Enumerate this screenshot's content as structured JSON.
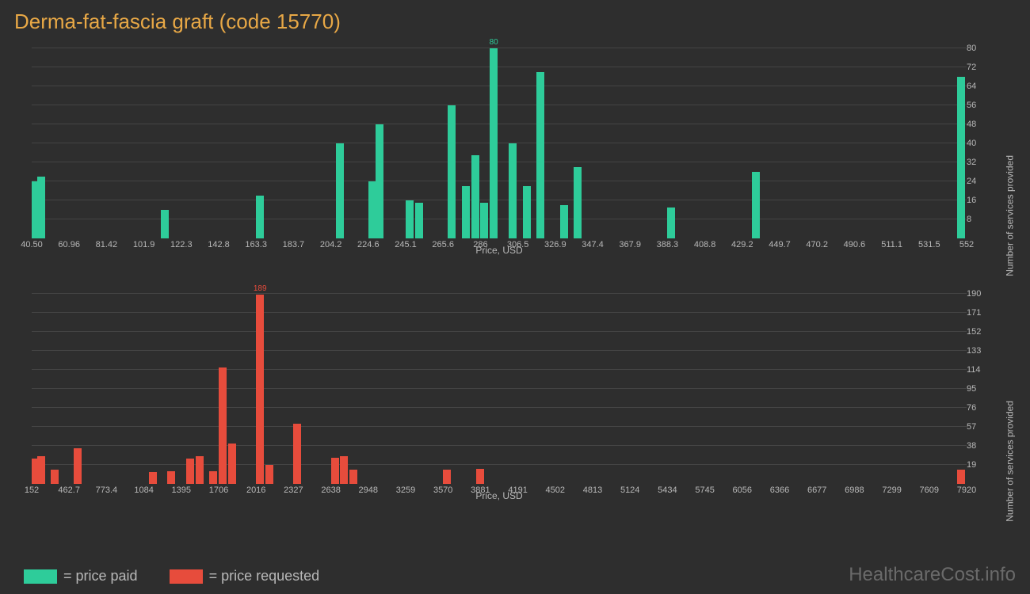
{
  "title": "Derma-fat-fascia graft (code 15770)",
  "watermark": "HealthcareCost.info",
  "colors": {
    "paid": "#2ecc9a",
    "requested": "#e74c3c",
    "background": "#2e2e2e",
    "grid": "#444444",
    "text": "#b8b8b8",
    "title": "#e8a846"
  },
  "chart_paid": {
    "type": "bar",
    "color": "#2ecc9a",
    "x_label": "Price, USD",
    "y_label": "Number of services provided",
    "x_ticks": [
      "40.50",
      "60.96",
      "81.42",
      "101.9",
      "122.3",
      "142.8",
      "163.3",
      "183.7",
      "204.2",
      "224.6",
      "245.1",
      "265.6",
      "286",
      "306.5",
      "326.9",
      "347.4",
      "367.9",
      "388.3",
      "408.8",
      "429.2",
      "449.7",
      "470.2",
      "490.6",
      "511.1",
      "531.5",
      "552"
    ],
    "y_ticks": [
      8,
      16,
      24,
      32,
      40,
      48,
      56,
      64,
      72,
      80
    ],
    "y_max": 80,
    "max_label": "80",
    "bars": [
      {
        "x": 0,
        "v": 24
      },
      {
        "x": 0.6,
        "v": 26
      },
      {
        "x": 13.8,
        "v": 12
      },
      {
        "x": 24,
        "v": 18
      },
      {
        "x": 32.5,
        "v": 40
      },
      {
        "x": 36,
        "v": 24
      },
      {
        "x": 36.8,
        "v": 48
      },
      {
        "x": 40,
        "v": 16
      },
      {
        "x": 41,
        "v": 15
      },
      {
        "x": 44.5,
        "v": 56
      },
      {
        "x": 46,
        "v": 22
      },
      {
        "x": 47,
        "v": 35
      },
      {
        "x": 48,
        "v": 15
      },
      {
        "x": 49,
        "v": 80
      },
      {
        "x": 51,
        "v": 40
      },
      {
        "x": 52.5,
        "v": 22
      },
      {
        "x": 54,
        "v": 70
      },
      {
        "x": 56.5,
        "v": 14
      },
      {
        "x": 58,
        "v": 30
      },
      {
        "x": 68,
        "v": 13
      },
      {
        "x": 77,
        "v": 28
      },
      {
        "x": 99,
        "v": 68
      }
    ]
  },
  "chart_requested": {
    "type": "bar",
    "color": "#e74c3c",
    "x_label": "Price, USD",
    "y_label": "Number of services provided",
    "x_ticks": [
      "152",
      "462.7",
      "773.4",
      "1084",
      "1395",
      "1706",
      "2016",
      "2327",
      "2638",
      "2948",
      "3259",
      "3570",
      "3881",
      "4191",
      "4502",
      "4813",
      "5124",
      "5434",
      "5745",
      "6056",
      "6366",
      "6677",
      "6988",
      "7299",
      "7609",
      "7920"
    ],
    "y_ticks": [
      19,
      38,
      57,
      76,
      95,
      114,
      133,
      152,
      171,
      190
    ],
    "y_max": 190,
    "max_label": "189",
    "bars": [
      {
        "x": 0,
        "v": 25
      },
      {
        "x": 0.6,
        "v": 28
      },
      {
        "x": 2,
        "v": 14
      },
      {
        "x": 4.5,
        "v": 36
      },
      {
        "x": 12.5,
        "v": 12
      },
      {
        "x": 14.5,
        "v": 13
      },
      {
        "x": 16.5,
        "v": 25
      },
      {
        "x": 17.5,
        "v": 28
      },
      {
        "x": 19,
        "v": 13
      },
      {
        "x": 20,
        "v": 116
      },
      {
        "x": 21,
        "v": 40
      },
      {
        "x": 24,
        "v": 189
      },
      {
        "x": 25,
        "v": 19
      },
      {
        "x": 28,
        "v": 60
      },
      {
        "x": 32,
        "v": 26
      },
      {
        "x": 33,
        "v": 28
      },
      {
        "x": 34,
        "v": 14
      },
      {
        "x": 44,
        "v": 14
      },
      {
        "x": 47.5,
        "v": 15
      },
      {
        "x": 99,
        "v": 14
      }
    ]
  },
  "legend": {
    "paid": "= price paid",
    "requested": "= price requested"
  }
}
